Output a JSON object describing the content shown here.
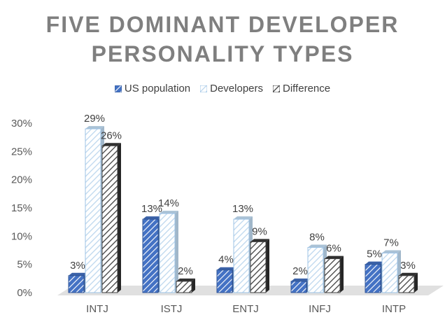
{
  "chart_data": {
    "type": "bar",
    "title_lines": [
      "FIVE DOMINANT DEVELOPER",
      "PERSONALITY TYPES"
    ],
    "categories": [
      "INTJ",
      "ISTJ",
      "ENTJ",
      "INFJ",
      "INTP"
    ],
    "series": [
      {
        "name": "US population",
        "values": [
          3,
          13,
          4,
          2,
          5
        ],
        "labels": [
          "3%",
          "13%",
          "4%",
          "2%",
          "5%"
        ],
        "color": "#4472c4"
      },
      {
        "name": "Developers",
        "values": [
          29,
          14,
          13,
          8,
          7
        ],
        "labels": [
          "29%",
          "14%",
          "13%",
          "8%",
          "7%"
        ],
        "color": "#bdd7ee"
      },
      {
        "name": "Difference",
        "values": [
          26,
          2,
          9,
          6,
          3
        ],
        "labels": [
          "26%",
          "2%",
          "9%",
          "6%",
          "3%"
        ],
        "color": "#404040"
      }
    ],
    "yticks": [
      "0%",
      "5%",
      "10%",
      "15%",
      "20%",
      "25%",
      "30%"
    ],
    "ylim": [
      0,
      30
    ],
    "legend_position": "top",
    "grid": false
  }
}
